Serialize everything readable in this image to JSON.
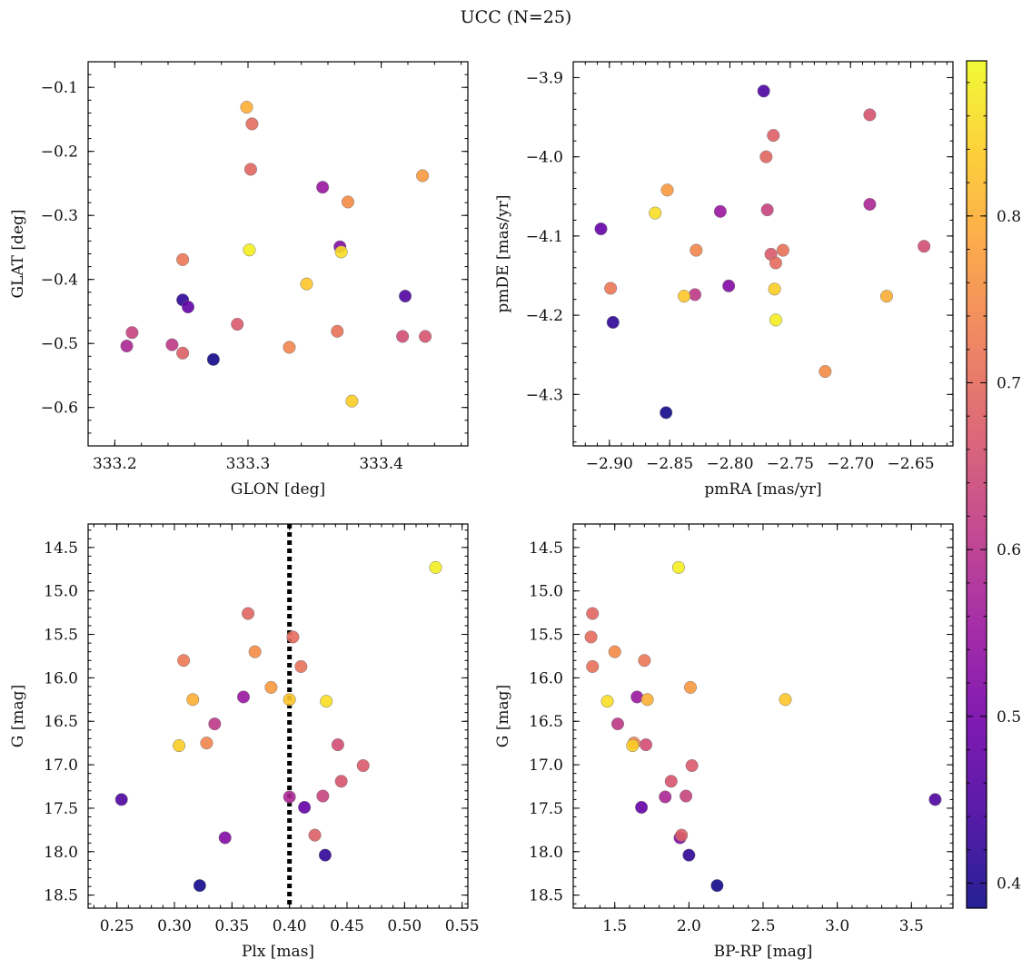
{
  "figure": {
    "title": "UCC (N=25)"
  },
  "colorbar": {
    "range": [
      0.385,
      0.893
    ],
    "ticks": [
      0.4,
      0.5,
      0.6,
      0.7,
      0.8
    ],
    "tick_labels": [
      "0.4",
      "0.5",
      "0.6",
      "0.7",
      "0.8"
    ],
    "colormap": "plasma",
    "colors": [
      "#0d0887",
      "#46039f",
      "#7201a8",
      "#9c179e",
      "#bd3786",
      "#d8576b",
      "#ed7953",
      "#fb9f3a",
      "#fdca26",
      "#f0f921"
    ]
  },
  "colorbar_values": [
    0.39,
    0.42,
    0.45,
    0.48,
    0.52,
    0.55,
    0.58,
    0.61,
    0.63,
    0.65,
    0.66,
    0.67,
    0.68,
    0.69,
    0.7,
    0.71,
    0.72,
    0.74,
    0.75,
    0.77,
    0.8,
    0.83,
    0.84,
    0.86,
    0.88
  ],
  "chart_data": [
    {
      "type": "scatter",
      "xlabel": "GLON [deg]",
      "ylabel": "GLAT [deg]",
      "xlim": [
        333.18,
        333.465
      ],
      "ylim": [
        -0.66,
        -0.06
      ],
      "y_inverted": false,
      "xticks": [
        333.2,
        333.3,
        333.4
      ],
      "xtick_labels": [
        "333.2",
        "333.3",
        "333.4"
      ],
      "yticks": [
        -0.1,
        -0.2,
        -0.3,
        -0.4,
        -0.5,
        -0.6
      ],
      "ytick_labels": [
        "−0.1",
        "−0.2",
        "−0.3",
        "−0.4",
        "−0.5",
        "−0.6"
      ],
      "x": [
        333.274,
        333.251,
        333.418,
        333.255,
        333.369,
        333.356,
        333.209,
        333.243,
        333.213,
        333.416,
        333.433,
        333.292,
        333.251,
        333.302,
        333.303,
        333.367,
        333.251,
        333.331,
        333.375,
        333.431,
        333.299,
        333.344,
        333.378,
        333.37,
        333.301
      ],
      "y": [
        -0.525,
        -0.432,
        -0.426,
        -0.443,
        -0.349,
        -0.256,
        -0.504,
        -0.502,
        -0.483,
        -0.489,
        -0.489,
        -0.47,
        -0.515,
        -0.228,
        -0.157,
        -0.481,
        -0.369,
        -0.506,
        -0.279,
        -0.238,
        -0.131,
        -0.407,
        -0.59,
        -0.357,
        -0.354
      ]
    },
    {
      "type": "scatter",
      "xlabel": "pmRA [mas/yr]",
      "ylabel": "pmDE [mas/yr]",
      "xlim": [
        -2.93,
        -2.615
      ],
      "ylim": [
        -4.365,
        -3.88
      ],
      "y_inverted": false,
      "xticks": [
        -2.9,
        -2.85,
        -2.8,
        -2.75,
        -2.7,
        -2.65
      ],
      "xtick_labels": [
        "−2.90",
        "−2.85",
        "−2.80",
        "−2.75",
        "−2.70",
        "−2.65"
      ],
      "yticks": [
        -3.9,
        -4.0,
        -4.1,
        -4.2,
        -4.3
      ],
      "ytick_labels": [
        "−3.9",
        "−4.0",
        "−4.1",
        "−4.2",
        "−4.3"
      ],
      "x": [
        -2.853,
        -2.897,
        -2.772,
        -2.907,
        -2.801,
        -2.808,
        -2.684,
        -2.829,
        -2.769,
        -2.639,
        -2.684,
        -2.766,
        -2.764,
        -2.77,
        -2.762,
        -2.756,
        -2.899,
        -2.828,
        -2.721,
        -2.852,
        -2.67,
        -2.838,
        -2.763,
        -2.862,
        -2.762
      ],
      "y": [
        -4.323,
        -4.209,
        -3.917,
        -4.091,
        -4.163,
        -4.069,
        -4.06,
        -4.174,
        -4.067,
        -4.113,
        -3.947,
        -4.123,
        -3.973,
        -4.0,
        -4.134,
        -4.118,
        -4.166,
        -4.118,
        -4.271,
        -4.042,
        -4.176,
        -4.176,
        -4.167,
        -4.071,
        -4.206
      ]
    },
    {
      "type": "scatter",
      "xlabel": "Plx [mas]",
      "ylabel": "G [mag]",
      "xlim": [
        0.225,
        0.555
      ],
      "ylim": [
        18.65,
        14.23
      ],
      "y_inverted": true,
      "vline": {
        "x": 0.4,
        "style": "dotted",
        "color": "#000000"
      },
      "xticks": [
        0.25,
        0.3,
        0.35,
        0.4,
        0.45,
        0.5,
        0.55
      ],
      "xtick_labels": [
        "0.25",
        "0.30",
        "0.35",
        "0.40",
        "0.45",
        "0.50",
        "0.55"
      ],
      "yticks": [
        14.5,
        15.0,
        15.5,
        16.0,
        16.5,
        17.0,
        17.5,
        18.0,
        18.5
      ],
      "ytick_labels": [
        "14.5",
        "15.0",
        "15.5",
        "16.0",
        "16.5",
        "17.0",
        "17.5",
        "18.0",
        "18.5"
      ],
      "x": [
        0.322,
        0.431,
        0.254,
        0.413,
        0.344,
        0.36,
        0.4,
        0.335,
        0.429,
        0.442,
        0.445,
        0.464,
        0.422,
        0.364,
        0.403,
        0.41,
        0.308,
        0.328,
        0.37,
        0.384,
        0.316,
        0.4,
        0.304,
        0.432,
        0.527
      ],
      "y": [
        18.39,
        18.04,
        17.4,
        17.49,
        17.84,
        16.22,
        17.37,
        16.53,
        17.36,
        16.77,
        17.19,
        17.01,
        17.81,
        15.26,
        15.53,
        15.87,
        15.8,
        16.75,
        15.7,
        16.11,
        16.25,
        16.25,
        16.78,
        16.27,
        14.73
      ]
    },
    {
      "type": "scatter",
      "xlabel": "BP-RP [mag]",
      "ylabel": "G [mag]",
      "xlim": [
        1.22,
        3.78
      ],
      "ylim": [
        18.65,
        14.23
      ],
      "y_inverted": true,
      "xticks": [
        1.5,
        2.0,
        2.5,
        3.0,
        3.5
      ],
      "xtick_labels": [
        "1.5",
        "2.0",
        "2.5",
        "3.0",
        "3.5"
      ],
      "yticks": [
        14.5,
        15.0,
        15.5,
        16.0,
        16.5,
        17.0,
        17.5,
        18.0,
        18.5
      ],
      "ytick_labels": [
        "14.5",
        "15.0",
        "15.5",
        "16.0",
        "16.5",
        "17.0",
        "17.5",
        "18.0",
        "18.5"
      ],
      "x": [
        2.19,
        2.0,
        3.66,
        1.68,
        1.94,
        1.65,
        1.84,
        1.52,
        1.98,
        1.71,
        1.88,
        2.02,
        1.95,
        1.35,
        1.34,
        1.35,
        1.7,
        1.63,
        1.5,
        2.01,
        1.72,
        2.65,
        1.62,
        1.45,
        1.93
      ],
      "y": [
        18.39,
        18.04,
        17.4,
        17.49,
        17.84,
        16.22,
        17.37,
        16.53,
        17.36,
        16.77,
        17.19,
        17.01,
        17.81,
        15.26,
        15.53,
        15.87,
        15.8,
        16.75,
        15.7,
        16.11,
        16.25,
        16.25,
        16.78,
        16.27,
        14.73
      ]
    }
  ]
}
